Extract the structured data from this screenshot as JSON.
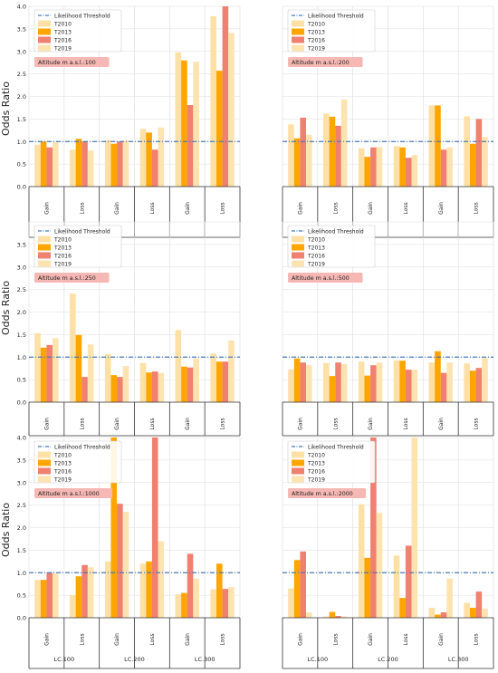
{
  "figure": {
    "ylabel": "Odds Ratio",
    "group_labels": [
      "LC.100",
      "LC.200",
      "LC.300"
    ],
    "change_labels": [
      "Gain",
      "Loss"
    ]
  },
  "colors": {
    "T2010": "#fde0a6",
    "T2013": "#ffa500",
    "T2016": "#f08070",
    "T2019": "#fde3b0",
    "threshold": "#4a7bb7",
    "altitude_box": "#f6b8b4",
    "grid": "#dddddd"
  },
  "chart_data": [
    {
      "type": "bar",
      "altitude_label": "Altitude m a.s.l.:100",
      "categories": [
        "LC.100 Gain",
        "LC.100 Loss",
        "LC.200 Gain",
        "LC.200 Loss",
        "LC.300 Gain",
        "LC.300 Loss"
      ],
      "threshold": 1.0,
      "ylim": [
        0,
        4.0
      ],
      "yticks": [
        "0.0",
        "0.5",
        "1.0",
        "1.5",
        "2.0",
        "2.5",
        "3.0",
        "3.5",
        "4.0"
      ],
      "legend": [
        "Likelihood Threshold",
        "T2010",
        "T2013",
        "T2016",
        "T2019"
      ],
      "series": [
        {
          "name": "T2010",
          "values": [
            0.93,
            0.82,
            1.03,
            1.28,
            2.98,
            3.78
          ]
        },
        {
          "name": "T2013",
          "values": [
            1.0,
            1.06,
            0.95,
            1.2,
            2.8,
            2.57
          ]
        },
        {
          "name": "T2016",
          "values": [
            0.87,
            1.0,
            1.0,
            0.82,
            1.81,
            4.02
          ]
        },
        {
          "name": "T2019",
          "values": [
            0.99,
            0.8,
            1.03,
            1.31,
            2.77,
            3.41
          ]
        }
      ]
    },
    {
      "type": "bar",
      "altitude_label": "Altitude m a.s.l.:200",
      "categories": [
        "LC.100 Gain",
        "LC.100 Loss",
        "LC.200 Gain",
        "LC.200 Loss",
        "LC.300 Gain",
        "LC.300 Loss"
      ],
      "threshold": 1.0,
      "ylim": [
        0,
        4.0
      ],
      "legend": [
        "Likelihood Threshold",
        "T2010",
        "T2013",
        "T2016",
        "T2019"
      ],
      "series": [
        {
          "name": "T2010",
          "values": [
            1.38,
            1.62,
            0.85,
            0.9,
            1.8,
            1.56
          ]
        },
        {
          "name": "T2013",
          "values": [
            1.07,
            1.55,
            0.66,
            0.87,
            1.8,
            0.95
          ]
        },
        {
          "name": "T2016",
          "values": [
            1.53,
            1.35,
            0.87,
            0.64,
            0.82,
            1.5
          ]
        },
        {
          "name": "T2019",
          "values": [
            1.15,
            1.93,
            0.88,
            0.7,
            0.87,
            1.1
          ]
        }
      ]
    },
    {
      "type": "bar",
      "altitude_label": "Altitude m a.s.l.:250",
      "categories": [
        "LC.100 Gain",
        "LC.100 Loss",
        "LC.200 Gain",
        "LC.200 Loss",
        "LC.300 Gain",
        "LC.300 Loss"
      ],
      "threshold": 1.0,
      "ylim": [
        0,
        4.0
      ],
      "yticks": [
        "0.0",
        "0.5",
        "1.0",
        "1.5",
        "2.0",
        "2.5",
        "3.0",
        "3.5"
      ],
      "legend": [
        "Likelihood Threshold",
        "T2010",
        "T2013",
        "T2016",
        "T2019"
      ],
      "series": [
        {
          "name": "T2010",
          "values": [
            1.53,
            2.41,
            1.07,
            0.87,
            1.6,
            1.08
          ]
        },
        {
          "name": "T2013",
          "values": [
            1.21,
            1.49,
            0.6,
            0.66,
            0.79,
            0.9
          ]
        },
        {
          "name": "T2016",
          "values": [
            1.27,
            0.56,
            0.56,
            0.68,
            0.77,
            0.9
          ]
        },
        {
          "name": "T2019",
          "values": [
            1.42,
            1.28,
            0.8,
            0.65,
            0.97,
            1.37
          ]
        }
      ]
    },
    {
      "type": "bar",
      "altitude_label": "Altitude m a.s.l.:500",
      "categories": [
        "LC.100 Gain",
        "LC.100 Loss",
        "LC.200 Gain",
        "LC.200 Loss",
        "LC.300 Gain",
        "LC.300 Loss"
      ],
      "threshold": 1.0,
      "ylim": [
        0,
        4.0
      ],
      "legend": [
        "Likelihood Threshold",
        "T2010",
        "T2013",
        "T2016",
        "T2019"
      ],
      "series": [
        {
          "name": "T2010",
          "values": [
            0.73,
            0.87,
            0.9,
            0.93,
            0.88,
            0.86
          ]
        },
        {
          "name": "T2013",
          "values": [
            0.97,
            0.58,
            0.59,
            0.92,
            1.13,
            0.7
          ]
        },
        {
          "name": "T2016",
          "values": [
            0.88,
            0.88,
            0.82,
            0.72,
            0.65,
            0.76
          ]
        },
        {
          "name": "T2019",
          "values": [
            0.82,
            0.85,
            0.88,
            0.72,
            0.88,
            0.98
          ]
        }
      ]
    },
    {
      "type": "bar",
      "altitude_label": "Altitude m a.s.l.:1000",
      "categories": [
        "LC.100 Gain",
        "LC.100 Loss",
        "LC.200 Gain",
        "LC.200 Loss",
        "LC.300 Gain",
        "LC.300 Loss"
      ],
      "threshold": 1.0,
      "ylim": [
        0,
        4.0
      ],
      "yticks": [
        "0.0",
        "0.5",
        "1.0",
        "1.5",
        "2.0",
        "2.5",
        "3.0",
        "3.5",
        "4.0"
      ],
      "legend": [
        "Likelihood Threshold",
        "T2010",
        "T2013",
        "T2016",
        "T2019"
      ],
      "series": [
        {
          "name": "T2010",
          "values": [
            0.84,
            0.5,
            1.25,
            1.2,
            0.52,
            0.63
          ]
        },
        {
          "name": "T2013",
          "values": [
            0.84,
            0.92,
            4.02,
            1.25,
            0.55,
            1.2
          ]
        },
        {
          "name": "T2016",
          "values": [
            1.0,
            1.17,
            2.53,
            4.02,
            1.42,
            0.64
          ]
        },
        {
          "name": "T2019",
          "values": [
            0.98,
            1.12,
            2.35,
            1.7,
            0.87,
            0.68
          ]
        }
      ]
    },
    {
      "type": "bar",
      "altitude_label": "Altitude m a.s.l.:2000",
      "categories": [
        "LC.100 Gain",
        "LC.100 Loss",
        "LC.200 Gain",
        "LC.200 Loss",
        "LC.300 Gain",
        "LC.300 Loss"
      ],
      "threshold": 1.0,
      "ylim": [
        0,
        4.0
      ],
      "legend": [
        "Likelihood Threshold",
        "T2010",
        "T2013",
        "T2016",
        "T2019"
      ],
      "series": [
        {
          "name": "T2010",
          "values": [
            0.65,
            0.03,
            2.52,
            1.38,
            0.22,
            0.33
          ]
        },
        {
          "name": "T2013",
          "values": [
            1.28,
            0.13,
            1.33,
            0.44,
            0.07,
            0.22
          ]
        },
        {
          "name": "T2016",
          "values": [
            1.47,
            0.04,
            4.02,
            1.6,
            0.12,
            0.58
          ]
        },
        {
          "name": "T2019",
          "values": [
            0.12,
            0.03,
            2.33,
            4.02,
            0.87,
            0.2
          ]
        }
      ]
    }
  ]
}
